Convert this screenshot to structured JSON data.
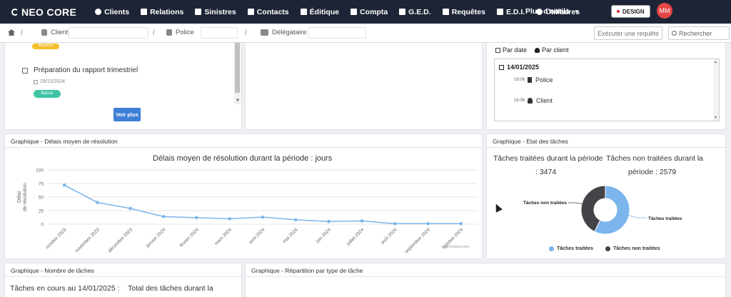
{
  "app": {
    "brand": "NEO CORE"
  },
  "nav": {
    "items": [
      {
        "label": "Clients",
        "icon": "user-icon"
      },
      {
        "label": "Relations",
        "icon": "tag-icon"
      },
      {
        "label": "Sinistres",
        "icon": "car-icon"
      },
      {
        "label": "Contacts",
        "icon": "contact-card-icon"
      },
      {
        "label": "Éditique",
        "icon": "envelope-icon"
      },
      {
        "label": "Compta",
        "icon": "file-icon"
      },
      {
        "label": "G.E.D.",
        "icon": "folder-icon"
      },
      {
        "label": "Requêtes",
        "icon": "chart-icon"
      },
      {
        "label": "E.D.I.",
        "icon": "book-icon"
      },
      {
        "label": "Utilitaires",
        "icon": "gear-icon"
      }
    ],
    "more": "Plus d'outils",
    "design_badge": "DESIGN",
    "avatar": "MM"
  },
  "filters": {
    "client_label": "Client",
    "police_label": "Police",
    "delegataire_label": "Délégataire",
    "request_placeholder": "Exécuter une requête",
    "search_placeholder": "Rechercher"
  },
  "tasks": {
    "top_badge": "Moyenne",
    "items": [
      {
        "title": "Préparation du rapport trimestriel",
        "date": "29/10/2024",
        "priority": "Basse"
      }
    ],
    "more_button": "Voir plus"
  },
  "agenda": {
    "view_by_date": "Par date",
    "view_by_client": "Par client",
    "date": "14/01/2025",
    "events": [
      {
        "time": "16:06",
        "label": "Police",
        "icon": "document-icon"
      },
      {
        "time": "16:06",
        "label": "Client",
        "icon": "user-icon"
      }
    ]
  },
  "delay_card": {
    "header": "Graphique - Délais moyen de résolution",
    "credits": "Highcharts.com"
  },
  "state_card": {
    "header": "Graphique - Etat des tâches",
    "treated_text_1": "Tâches traitées durant la période",
    "treated_text_2": ": 3474",
    "untreated_text_1": "Tâches non traitées durant la",
    "untreated_text_2": "période : 2579",
    "credits": "Highcharts.com"
  },
  "count_card": {
    "header": "Graphique - Nombre de tâches",
    "in_progress": "Tâches en cours au 14/01/2025 :",
    "total": "Total des tâches durant la"
  },
  "type_card": {
    "header": "Graphique - Répartition par type de tâche"
  },
  "colors": {
    "nav_bg": "#1d2435",
    "accent": "#3d7fd6",
    "series_blue": "#7cb5ec",
    "series_dark": "#434348"
  },
  "chart_data": [
    {
      "type": "line",
      "title": "Délais moyen de résolution durant la période : jours",
      "xlabel": "",
      "ylabel": "Délai de résolution",
      "ylim": [
        0,
        100
      ],
      "yticks": [
        0,
        25,
        50,
        75,
        100
      ],
      "categories": [
        "octobre 2023",
        "novembre 2023",
        "décembre 2023",
        "janvier 2024",
        "février 2024",
        "mars 2024",
        "avril 2024",
        "mai 2024",
        "juin 2024",
        "juillet 2024",
        "août 2024",
        "septembre 2024",
        "octobre 2024"
      ],
      "series": [
        {
          "values": [
            72,
            40,
            29,
            14,
            12,
            10,
            13,
            8,
            5,
            6,
            1,
            1,
            1
          ]
        }
      ],
      "grid": true
    },
    {
      "type": "pie",
      "labels": [
        "Tâches traitées",
        "Tâches non traitées"
      ],
      "values": [
        3474,
        2579
      ],
      "legend": "bottom"
    }
  ]
}
